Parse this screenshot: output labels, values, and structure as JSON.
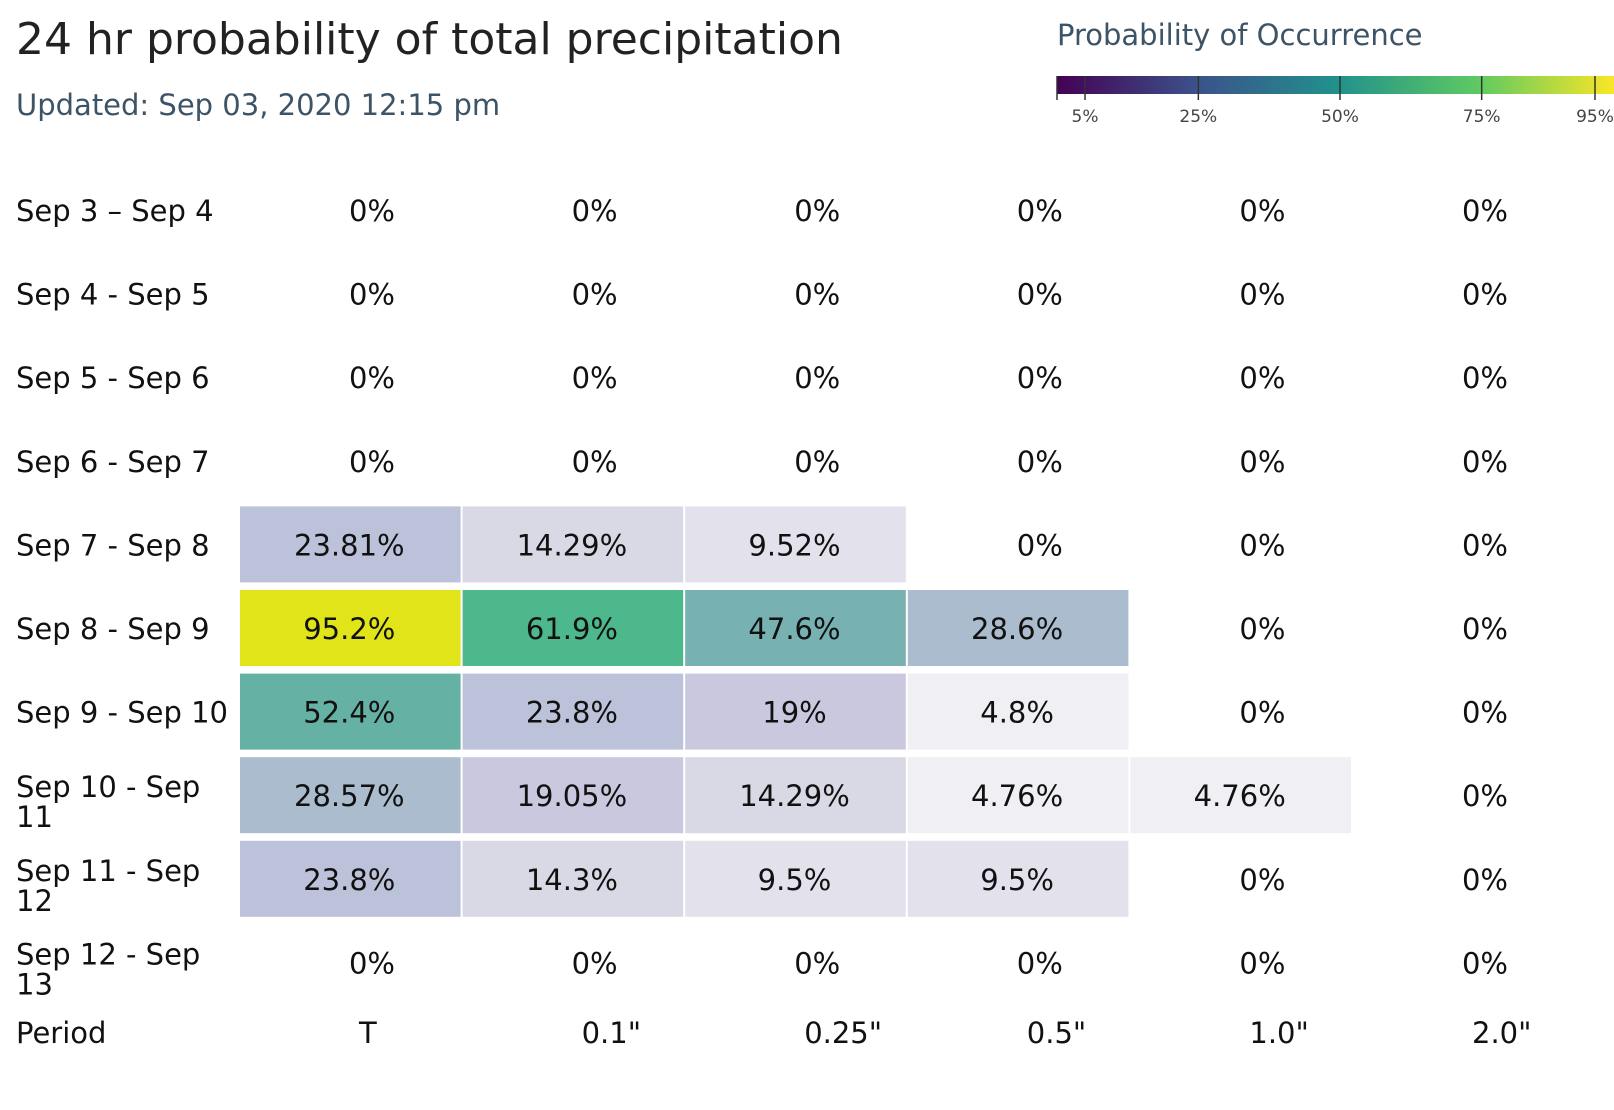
{
  "header": {
    "title": "24 hr probability of total precipitation",
    "updated": "Updated: Sep 03, 2020 12:15 pm"
  },
  "legend": {
    "title": "Probability of Occurrence",
    "ticks": [
      {
        "value": 5,
        "label": "5%"
      },
      {
        "value": 25,
        "label": "25%"
      },
      {
        "value": 50,
        "label": "50%"
      },
      {
        "value": 75,
        "label": "75%"
      },
      {
        "value": 95,
        "label": "95%"
      }
    ],
    "colorscale": [
      "#440154",
      "#3b528b",
      "#21918c",
      "#5ec962",
      "#fde725"
    ]
  },
  "chart_data": {
    "type": "heatmap",
    "title": "24 hr probability of total precipitation",
    "row_header": "Period",
    "columns": [
      "T",
      "0.1\"",
      "0.25\"",
      "0.5\"",
      "1.0\"",
      "2.0\""
    ],
    "rows": [
      {
        "label": "Sep 3 – Sep 4",
        "values": [
          "0%",
          "0%",
          "0%",
          "0%",
          "0%",
          "0%"
        ]
      },
      {
        "label": "Sep 4 - Sep 5",
        "values": [
          "0%",
          "0%",
          "0%",
          "0%",
          "0%",
          "0%"
        ]
      },
      {
        "label": "Sep 5 - Sep 6",
        "values": [
          "0%",
          "0%",
          "0%",
          "0%",
          "0%",
          "0%"
        ]
      },
      {
        "label": "Sep 6 - Sep 7",
        "values": [
          "0%",
          "0%",
          "0%",
          "0%",
          "0%",
          "0%"
        ]
      },
      {
        "label": "Sep 7 - Sep 8",
        "values": [
          "23.81%",
          "14.29%",
          "9.52%",
          "0%",
          "0%",
          "0%"
        ]
      },
      {
        "label": "Sep 8 - Sep 9",
        "values": [
          "95.2%",
          "61.9%",
          "47.6%",
          "28.6%",
          "0%",
          "0%"
        ]
      },
      {
        "label": "Sep 9 - Sep 10",
        "values": [
          "52.4%",
          "23.8%",
          "19%",
          "4.8%",
          "0%",
          "0%"
        ]
      },
      {
        "label": "Sep 10 - Sep 11",
        "values": [
          "28.57%",
          "19.05%",
          "14.29%",
          "4.76%",
          "4.76%",
          "0%"
        ]
      },
      {
        "label": "Sep 11 - Sep 12",
        "values": [
          "23.8%",
          "14.3%",
          "9.5%",
          "9.5%",
          "0%",
          "0%"
        ]
      },
      {
        "label": "Sep 12 - Sep 13",
        "values": [
          "0%",
          "0%",
          "0%",
          "0%",
          "0%",
          "0%"
        ]
      }
    ],
    "zero_cell_color": "#ffffff",
    "cell_colors": {
      "95.2": "#e1e419",
      "61.9": "#4cb88c",
      "52.4": "#65b1a4",
      "47.6": "#77b1b1",
      "28.6": "#abbcce",
      "23.8": "#bcc2d9",
      "19": "#cac8de",
      "14.3": "#d9d8e5",
      "9.5": "#e3e2ec",
      "4.8": "#efeff4"
    },
    "legend_position": "top-right"
  }
}
